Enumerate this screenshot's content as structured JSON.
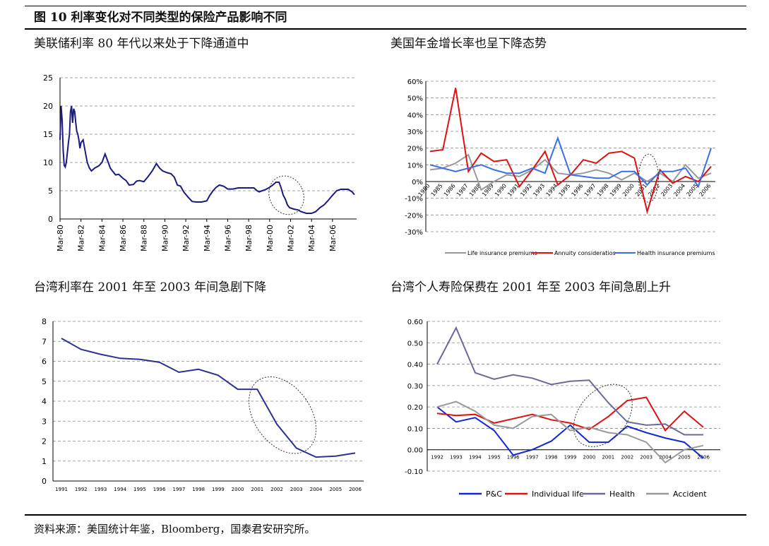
{
  "figure_title": "图 10 利率变化对不同类型的保险产品影响不同",
  "source": "资料来源：美国统计年鉴，Bloomberg，国泰君安研究所。",
  "panels": {
    "p1_title": "美联储利率 80 年代以来处于下降通道中",
    "p2_title": "美国年金增长率也呈下降态势",
    "p3_title": "台湾利率在 2001 年至 2003 年间急剧下降",
    "p4_title": "台湾个人寿险保费在 2001 年至 2003 年间急剧上升"
  },
  "chart_data": [
    {
      "type": "line",
      "id": "fed-rate",
      "title": "美联储利率 80 年代以来处于下降通道中",
      "x_start": 1980,
      "x_end": 2008.3,
      "xticks": [
        "Mar-80",
        "Mar-82",
        "Mar-84",
        "Mar-86",
        "Mar-88",
        "Mar-90",
        "Mar-92",
        "Mar-94",
        "Mar-96",
        "Mar-98",
        "Mar-00",
        "Mar-02",
        "Mar-04",
        "Mar-06"
      ],
      "ylim": [
        0,
        25
      ],
      "yticks": [
        0,
        5,
        10,
        15,
        20,
        25
      ],
      "color": "#1a1a80",
      "series": [
        {
          "x": [
            1980.0,
            1980.1,
            1980.2,
            1980.3,
            1980.4,
            1980.5,
            1980.6,
            1980.8,
            1980.9,
            1981.0,
            1981.1,
            1981.2,
            1981.3,
            1981.4,
            1981.5,
            1981.6,
            1981.7,
            1981.8,
            1981.9,
            1982.0,
            1982.2,
            1982.4,
            1982.6,
            1982.8,
            1983.0,
            1983.3,
            1983.7,
            1984.0,
            1984.3,
            1984.6,
            1984.8,
            1985.0,
            1985.3,
            1985.6,
            1986.0,
            1986.3,
            1986.6,
            1987.0,
            1987.3,
            1987.6,
            1988.0,
            1988.4,
            1988.8,
            1989.2,
            1989.5,
            1989.8,
            1990.2,
            1990.6,
            1990.9,
            1991.2,
            1991.5,
            1991.8,
            1992.2,
            1992.6,
            1993.0,
            1993.5,
            1994.0,
            1994.3,
            1994.6,
            1994.9,
            1995.2,
            1995.6,
            1996.0,
            1996.5,
            1997.0,
            1997.5,
            1998.0,
            1998.5,
            1998.8,
            1999.0,
            1999.3,
            1999.6,
            2000.0,
            2000.3,
            2000.6,
            2000.9,
            2001.1,
            2001.3,
            2001.5,
            2001.7,
            2001.9,
            2002.3,
            2002.7,
            2003.0,
            2003.5,
            2004.0,
            2004.4,
            2004.8,
            2005.2,
            2005.6,
            2006.0,
            2006.4,
            2006.8,
            2007.2,
            2007.5,
            2007.7,
            2007.9,
            2008.0,
            2008.1
          ],
          "y": [
            14.0,
            20.0,
            17.5,
            12.0,
            9.5,
            9.2,
            10.0,
            13.5,
            15.0,
            19.0,
            20.0,
            17.0,
            19.5,
            19.0,
            17.0,
            15.5,
            15.0,
            14.0,
            12.5,
            13.5,
            14.0,
            12.0,
            10.0,
            9.0,
            8.5,
            9.0,
            9.4,
            10.0,
            11.5,
            10.0,
            9.0,
            8.5,
            7.8,
            7.9,
            7.2,
            6.8,
            6.0,
            6.1,
            6.7,
            6.8,
            6.6,
            7.5,
            8.5,
            9.8,
            9.0,
            8.5,
            8.2,
            8.0,
            7.4,
            6.0,
            5.8,
            4.8,
            3.9,
            3.1,
            3.0,
            3.0,
            3.2,
            4.2,
            5.0,
            5.6,
            6.0,
            5.8,
            5.3,
            5.3,
            5.5,
            5.5,
            5.5,
            5.5,
            5.0,
            4.8,
            5.0,
            5.2,
            5.6,
            6.0,
            6.5,
            6.5,
            5.5,
            4.2,
            3.5,
            2.5,
            2.0,
            1.75,
            1.6,
            1.3,
            1.0,
            1.0,
            1.3,
            2.0,
            2.5,
            3.3,
            4.2,
            5.0,
            5.25,
            5.25,
            5.25,
            5.0,
            4.75,
            4.5,
            4.3
          ]
        }
      ]
    },
    {
      "type": "line",
      "id": "us-annuity",
      "title": "美国年金增长率也呈下降态势",
      "categories": [
        "1980",
        "1985",
        "1986",
        "1987",
        "1988",
        "1989",
        "1990",
        "1991",
        "1992",
        "1993",
        "1994",
        "1995",
        "1996",
        "1997",
        "1998",
        "1999",
        "2000",
        "2001",
        "2002",
        "2003",
        "2004",
        "2005",
        "2006"
      ],
      "ylim": [
        -0.3,
        0.6
      ],
      "yticks": [
        "-30%",
        "-20%",
        "-10%",
        "0%",
        "10%",
        "20%",
        "30%",
        "40%",
        "50%",
        "60%"
      ],
      "series": [
        {
          "name": "Life insurance premiums",
          "color": "#999999",
          "values": [
            0.07,
            0.08,
            0.11,
            0.16,
            -0.05,
            0.0,
            0.04,
            0.03,
            0.07,
            0.13,
            0.05,
            0.04,
            0.05,
            0.07,
            0.05,
            0.01,
            0.05,
            0.0,
            0.05,
            0.0,
            0.1,
            0.02,
            0.05
          ]
        },
        {
          "name": "Annuity consideratios",
          "color": "#e01010",
          "values": [
            0.18,
            0.19,
            0.56,
            0.06,
            0.17,
            0.12,
            0.13,
            -0.03,
            0.07,
            0.18,
            -0.02,
            0.04,
            0.13,
            0.11,
            0.17,
            0.18,
            0.14,
            -0.18,
            0.07,
            -0.01,
            0.03,
            0.0,
            0.09
          ]
        },
        {
          "name": "Health insurance premiums",
          "color": "#3a6fe8",
          "values": [
            0.1,
            0.08,
            0.06,
            0.08,
            0.1,
            0.07,
            0.05,
            0.05,
            0.08,
            0.05,
            0.26,
            0.04,
            0.03,
            0.02,
            0.02,
            0.06,
            0.06,
            -0.02,
            0.06,
            0.06,
            0.08,
            -0.03,
            0.2
          ]
        }
      ]
    },
    {
      "type": "line",
      "id": "tw-rate",
      "title": "台湾利率在 2001 年至 2003 年间急剧下降",
      "categories": [
        "1991",
        "1992",
        "1993",
        "1994",
        "1995",
        "1996",
        "1997",
        "1998",
        "1999",
        "2000",
        "2001",
        "2002",
        "2003",
        "2004",
        "2005",
        "2006"
      ],
      "ylim": [
        0,
        8
      ],
      "yticks": [
        0,
        1,
        2,
        3,
        4,
        5,
        6,
        7,
        8
      ],
      "series": [
        {
          "name": "",
          "color": "#2e3192",
          "values": [
            7.15,
            6.6,
            6.35,
            6.15,
            6.1,
            5.95,
            5.45,
            5.6,
            5.3,
            4.6,
            4.6,
            2.85,
            1.65,
            1.2,
            1.25,
            1.4
          ]
        }
      ]
    },
    {
      "type": "line",
      "id": "tw-premium",
      "title": "台湾个人寿险保费在 2001 年至 2003 年间急剧上升",
      "categories": [
        "1992",
        "1993",
        "1994",
        "1995",
        "1996",
        "1997",
        "1998",
        "1999",
        "2000",
        "2001",
        "2002",
        "2003",
        "2004",
        "2005",
        "2006"
      ],
      "ylim": [
        -0.1,
        0.6
      ],
      "yticks": [
        "-0.10",
        "0.00",
        "0.10",
        "0.20",
        "0.30",
        "0.40",
        "0.50",
        "0.60"
      ],
      "series": [
        {
          "name": "P&C",
          "color": "#1028d8",
          "values": [
            0.2,
            0.13,
            0.15,
            0.09,
            -0.025,
            0.0,
            0.04,
            0.115,
            0.035,
            0.035,
            0.11,
            0.08,
            0.055,
            0.035,
            -0.04
          ]
        },
        {
          "name": "Individual life",
          "color": "#e01010",
          "values": [
            0.17,
            0.16,
            0.165,
            0.125,
            0.145,
            0.165,
            0.14,
            0.125,
            0.095,
            0.155,
            0.23,
            0.245,
            0.09,
            0.18,
            0.105
          ]
        },
        {
          "name": "Health",
          "color": "#6a6a9a",
          "values": [
            0.4,
            0.57,
            0.36,
            0.33,
            0.35,
            0.335,
            0.305,
            0.32,
            0.325,
            0.22,
            0.13,
            0.115,
            0.12,
            0.07,
            0.07
          ]
        },
        {
          "name": "Accident",
          "color": "#9a9a9a",
          "values": [
            0.2,
            0.225,
            0.18,
            0.115,
            0.1,
            0.155,
            0.165,
            0.09,
            0.105,
            0.08,
            0.07,
            0.035,
            -0.06,
            0.0,
            0.02
          ]
        }
      ]
    }
  ]
}
